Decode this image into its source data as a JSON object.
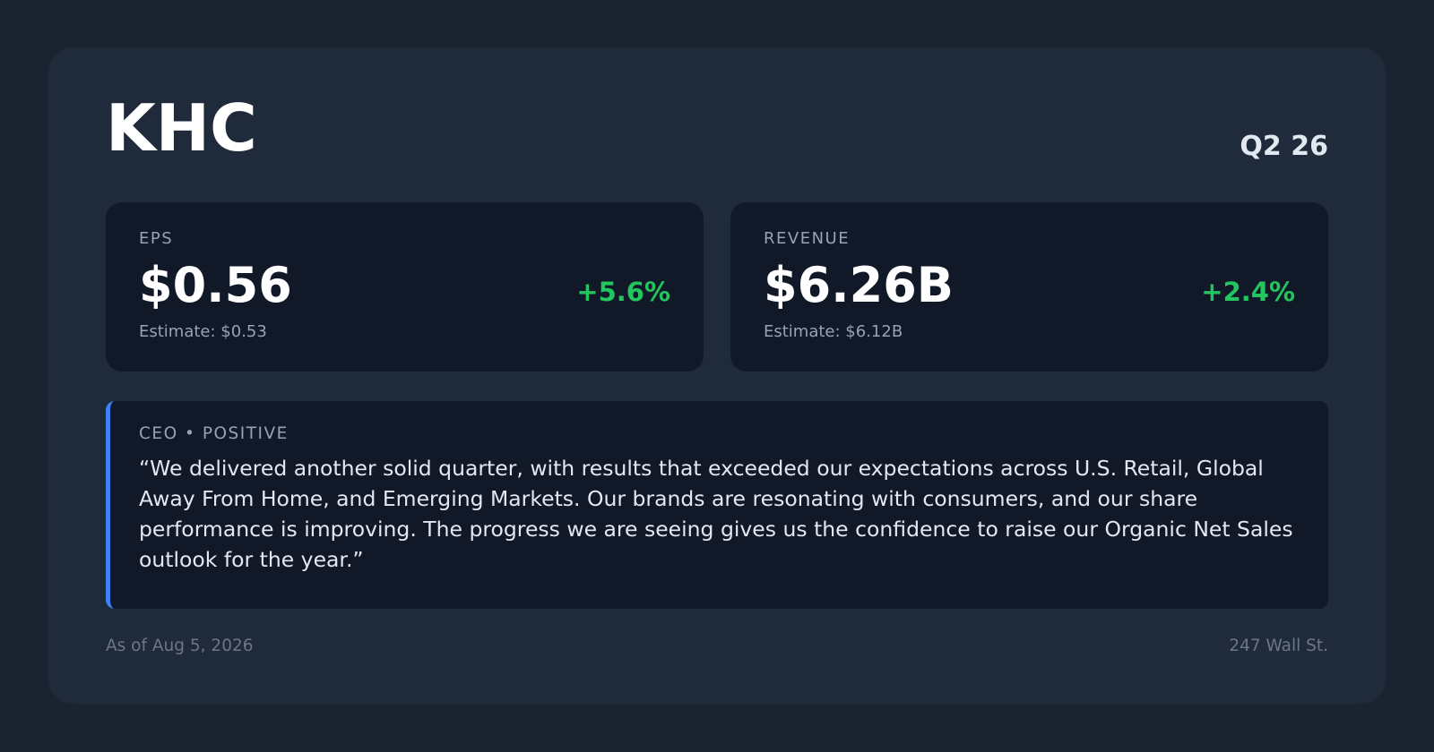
{
  "header": {
    "ticker": "KHC",
    "period": "Q2 26"
  },
  "metrics": [
    {
      "label": "EPS",
      "value": "$0.56",
      "change": "+5.6%",
      "estimate": "Estimate: $0.53"
    },
    {
      "label": "REVENUE",
      "value": "$6.26B",
      "change": "+2.4%",
      "estimate": "Estimate: $6.12B"
    }
  ],
  "quote": {
    "attribution": "CEO • POSITIVE",
    "text": "“We delivered another solid quarter, with results that exceeded our expectations across U.S. Retail, Global Away From Home, and Emerging Markets. Our brands are resonating with consumers, and our share performance is improving. The progress we are seeing gives us the confidence to raise our Organic Net Sales outlook for the year.”"
  },
  "footer": {
    "date": "As of Aug 5, 2026",
    "source": "247 Wall St."
  }
}
